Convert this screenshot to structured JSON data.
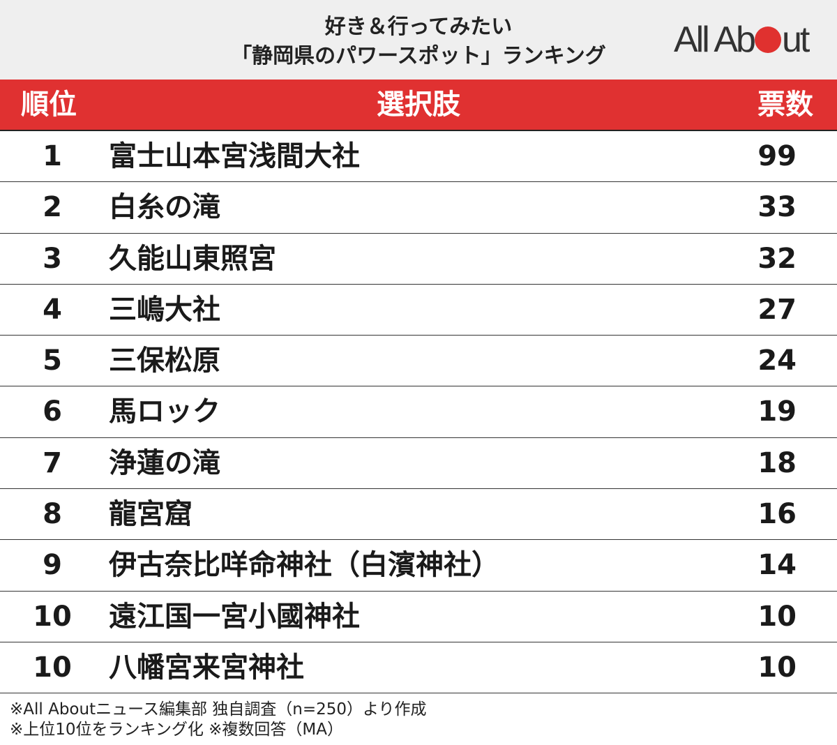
{
  "header": {
    "title_line1": "好き＆行ってみたい",
    "title_line2": "「静岡県のパワースポット」ランキング",
    "logo_text_left": "All Ab",
    "logo_text_right": "ut"
  },
  "colors": {
    "accent_red": "#e03131",
    "header_bg": "#efefef"
  },
  "chart_data": {
    "type": "table",
    "columns": [
      "順位",
      "選択肢",
      "票数"
    ],
    "rows": [
      {
        "rank": "1",
        "choice": "富士山本宮浅間大社",
        "votes": "99"
      },
      {
        "rank": "2",
        "choice": "白糸の滝",
        "votes": "33"
      },
      {
        "rank": "3",
        "choice": "久能山東照宮",
        "votes": "32"
      },
      {
        "rank": "4",
        "choice": "三嶋大社",
        "votes": "27"
      },
      {
        "rank": "5",
        "choice": "三保松原",
        "votes": "24"
      },
      {
        "rank": "6",
        "choice": "馬ロック",
        "votes": "19"
      },
      {
        "rank": "7",
        "choice": "浄蓮の滝",
        "votes": "18"
      },
      {
        "rank": "8",
        "choice": "龍宮窟",
        "votes": "16"
      },
      {
        "rank": "9",
        "choice": "伊古奈比咩命神社（白濱神社）",
        "votes": "14"
      },
      {
        "rank": "10",
        "choice": "遠江国一宮小國神社",
        "votes": "10"
      },
      {
        "rank": "10",
        "choice": "八幡宮来宮神社",
        "votes": "10"
      }
    ]
  },
  "footnotes": {
    "line1": "※All Aboutニュース編集部 独自調査（n=250）より作成",
    "line2": "※上位10位をランキング化 ※複数回答（MA）"
  }
}
